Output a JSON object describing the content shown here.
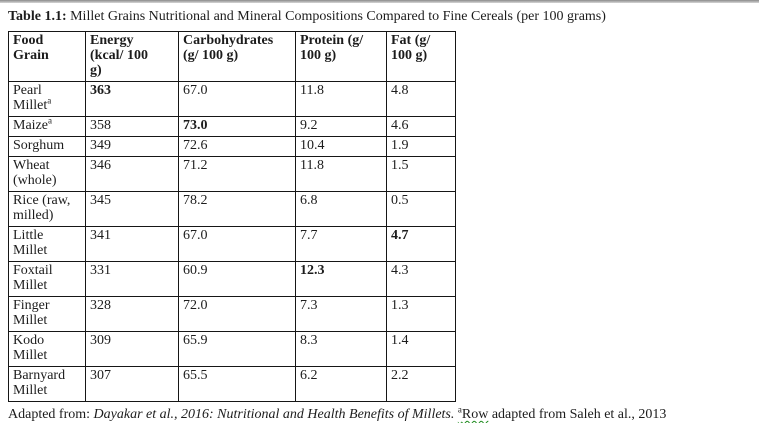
{
  "title": {
    "label": "Table 1.1:",
    "text": " Millet Grains Nutritional and Mineral Compositions Compared to Fine Cereals (per 100 grams)"
  },
  "table": {
    "headers": [
      "Food\nGrain",
      "Energy\n(kcal/ 100\ng)",
      "Carbohydrates\n(g/ 100 g)",
      "Protein (g/\n100 g)",
      "Fat (g/\n100 g)"
    ],
    "rows": [
      {
        "food": "Pearl\nMillet",
        "sup": "a",
        "energy": "363",
        "carbs": "67.0",
        "protein": "11.8",
        "fat": "4.8",
        "bold": [
          "energy"
        ]
      },
      {
        "food": "Maize",
        "sup": "a",
        "energy": "358",
        "carbs": "73.0",
        "protein": "9.2",
        "fat": "4.6",
        "bold": [
          "carbs"
        ]
      },
      {
        "food": "Sorghum",
        "sup": "",
        "energy": "349",
        "carbs": "72.6",
        "protein": "10.4",
        "fat": "1.9",
        "bold": []
      },
      {
        "food": "Wheat\n(whole)",
        "sup": "",
        "energy": "346",
        "carbs": "71.2",
        "protein": "11.8",
        "fat": "1.5",
        "bold": []
      },
      {
        "food": "Rice (raw,\nmilled)",
        "sup": "",
        "energy": "345",
        "carbs": "78.2",
        "protein": "6.8",
        "fat": "0.5",
        "bold": []
      },
      {
        "food": "Little\nMillet",
        "sup": "",
        "energy": "341",
        "carbs": "67.0",
        "protein": "7.7",
        "fat": "4.7",
        "bold": [
          "fat"
        ]
      },
      {
        "food": "Foxtail\nMillet",
        "sup": "",
        "energy": "331",
        "carbs": "60.9",
        "protein": "12.3",
        "fat": "4.3",
        "bold": [
          "protein"
        ]
      },
      {
        "food": "Finger\nMillet",
        "sup": "",
        "energy": "328",
        "carbs": "72.0",
        "protein": "7.3",
        "fat": "1.3",
        "bold": []
      },
      {
        "food": "Kodo\nMillet",
        "sup": "",
        "energy": "309",
        "carbs": "65.9",
        "protein": "8.3",
        "fat": "1.4",
        "bold": []
      },
      {
        "food": "Barnyard\nMillet",
        "sup": "",
        "energy": "307",
        "carbs": "65.5",
        "protein": "6.2",
        "fat": "2.2",
        "bold": []
      }
    ]
  },
  "footnote": {
    "prefix": "Adapted from: ",
    "source": "Dayakar et al., 2016: Nutritional and Health Benefits of Millets.",
    "sup": "a",
    "flagged_word": "Row",
    "rest": " adapted from Saleh et al., 2013",
    "squiggle_color": "#1c8a1c"
  }
}
